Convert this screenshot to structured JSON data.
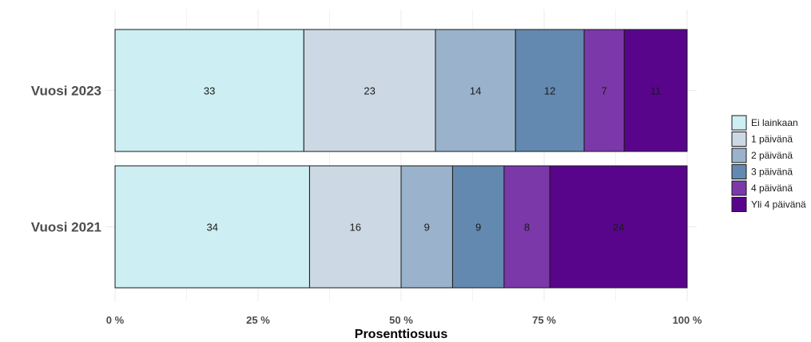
{
  "chart_data": {
    "type": "bar",
    "orientation": "horizontal",
    "stacked": true,
    "categories": [
      "Vuosi 2023",
      "Vuosi 2021"
    ],
    "series": [
      {
        "name": "Ei lainkaan",
        "values": [
          33,
          34
        ],
        "color": "#cdeef3"
      },
      {
        "name": "1 päivänä",
        "values": [
          23,
          16
        ],
        "color": "#ccd9e5"
      },
      {
        "name": "2 päivänä",
        "values": [
          14,
          9
        ],
        "color": "#9ab2cb"
      },
      {
        "name": "3 päivänä",
        "values": [
          12,
          9
        ],
        "color": "#6489b0"
      },
      {
        "name": "4 päivänä",
        "values": [
          7,
          8
        ],
        "color": "#7b38a9"
      },
      {
        "name": "Yli 4 päivänä",
        "values": [
          11,
          24
        ],
        "color": "#58058c"
      }
    ],
    "xlabel": "Prosenttiosuus",
    "ylabel": "",
    "xlim": [
      0,
      100
    ],
    "xticks": [
      0,
      25,
      50,
      75,
      100
    ],
    "xtick_labels": [
      "0 %",
      "25 %",
      "50 %",
      "75 %",
      "100 %"
    ],
    "grid": true,
    "legend_position": "right"
  }
}
